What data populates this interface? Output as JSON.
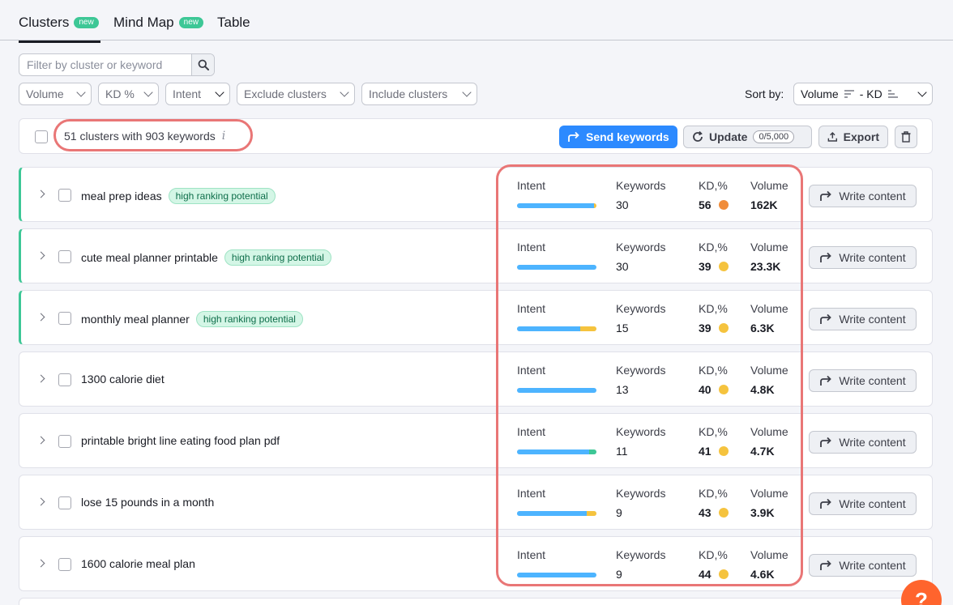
{
  "tabs": [
    {
      "label": "Clusters",
      "badge": "new"
    },
    {
      "label": "Mind Map",
      "badge": "new"
    },
    {
      "label": "Table",
      "badge": ""
    }
  ],
  "filters": {
    "search_placeholder": "Filter by cluster or keyword",
    "volume": "Volume",
    "kd": "KD %",
    "intent": "Intent",
    "exclude": "Exclude clusters",
    "include": "Include clusters",
    "sort_label": "Sort by:",
    "sort_value": "Volume",
    "sort_sep": "- KD"
  },
  "toolbar": {
    "summary": "51 clusters with 903 keywords",
    "info_icon": "i",
    "send": "Send keywords",
    "update": "Update",
    "update_count": "0/5,000",
    "export": "Export"
  },
  "metric_labels": {
    "intent": "Intent",
    "keywords": "Keywords",
    "kd": "KD,%",
    "volume": "Volume"
  },
  "write_label": "Write content",
  "colors": {
    "intent_blue": "#4db4ff",
    "intent_yellow": "#f5c33e",
    "intent_green": "#3dc796",
    "kd_orange": "#f08c3a",
    "kd_yellow": "#f5c33e"
  },
  "rows": [
    {
      "name": "meal prep ideas",
      "tag": "high ranking potential",
      "keywords": "30",
      "kd": "56",
      "kd_color": "#f08c3a",
      "volume": "162K",
      "intent": [
        {
          "f": 0.97,
          "c": "#4db4ff"
        },
        {
          "f": 0.03,
          "c": "#f5c33e"
        }
      ]
    },
    {
      "name": "cute meal planner printable",
      "tag": "high ranking potential",
      "keywords": "30",
      "kd": "39",
      "kd_color": "#f5c33e",
      "volume": "23.3K",
      "intent": [
        {
          "f": 1.0,
          "c": "#4db4ff"
        }
      ]
    },
    {
      "name": "monthly meal planner",
      "tag": "high ranking potential",
      "keywords": "15",
      "kd": "39",
      "kd_color": "#f5c33e",
      "volume": "6.3K",
      "intent": [
        {
          "f": 0.8,
          "c": "#4db4ff"
        },
        {
          "f": 0.2,
          "c": "#f5c33e"
        }
      ]
    },
    {
      "name": "1300 calorie diet",
      "tag": "",
      "keywords": "13",
      "kd": "40",
      "kd_color": "#f5c33e",
      "volume": "4.8K",
      "intent": [
        {
          "f": 1.0,
          "c": "#4db4ff"
        }
      ]
    },
    {
      "name": "printable bright line eating food plan pdf",
      "tag": "",
      "keywords": "11",
      "kd": "41",
      "kd_color": "#f5c33e",
      "volume": "4.7K",
      "intent": [
        {
          "f": 0.91,
          "c": "#4db4ff"
        },
        {
          "f": 0.09,
          "c": "#3dc796"
        }
      ]
    },
    {
      "name": "lose 15 pounds in a month",
      "tag": "",
      "keywords": "9",
      "kd": "43",
      "kd_color": "#f5c33e",
      "volume": "3.9K",
      "intent": [
        {
          "f": 0.88,
          "c": "#4db4ff"
        },
        {
          "f": 0.12,
          "c": "#f5c33e"
        }
      ]
    },
    {
      "name": "1600 calorie meal plan",
      "tag": "",
      "keywords": "9",
      "kd": "44",
      "kd_color": "#f5c33e",
      "volume": "4.6K",
      "intent": [
        {
          "f": 1.0,
          "c": "#4db4ff"
        }
      ]
    }
  ],
  "help_label": "?"
}
